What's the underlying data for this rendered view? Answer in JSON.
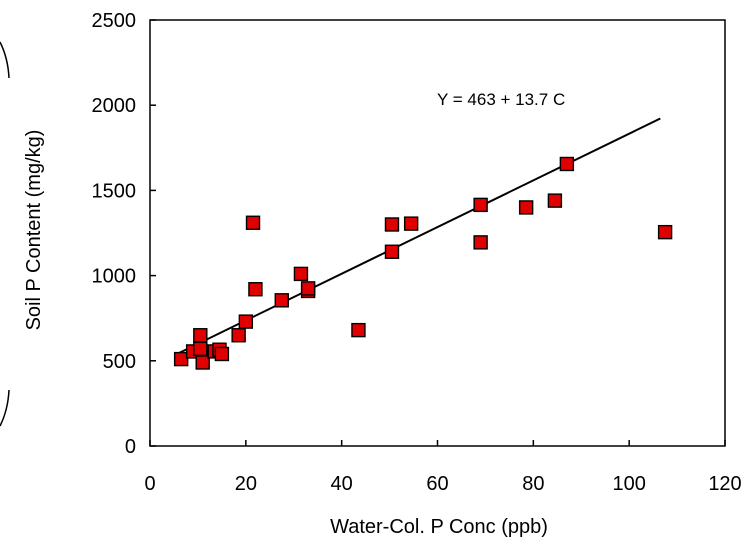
{
  "chart_data": {
    "type": "scatter",
    "xlabel": "Water-Col. P Conc (ppb)",
    "ylabel": "Soil P Content (mg/kg)",
    "xlim": [
      0,
      120
    ],
    "ylim": [
      0,
      2500
    ],
    "xticks": [
      0,
      20,
      40,
      60,
      80,
      100,
      120
    ],
    "yticks": [
      0,
      500,
      1000,
      1500,
      2000,
      2500
    ],
    "grid": false,
    "annotation": "Y  =   463  +  13.7 C",
    "marker_color": "#e00000",
    "points": [
      {
        "x": 6.5,
        "y": 510
      },
      {
        "x": 9,
        "y": 555
      },
      {
        "x": 10.5,
        "y": 650
      },
      {
        "x": 10.5,
        "y": 570
      },
      {
        "x": 11,
        "y": 490
      },
      {
        "x": 13.5,
        "y": 555
      },
      {
        "x": 14.5,
        "y": 565
      },
      {
        "x": 15,
        "y": 540
      },
      {
        "x": 18.5,
        "y": 650
      },
      {
        "x": 20,
        "y": 730
      },
      {
        "x": 21.5,
        "y": 1310
      },
      {
        "x": 22,
        "y": 920
      },
      {
        "x": 27.5,
        "y": 855
      },
      {
        "x": 31.5,
        "y": 1010
      },
      {
        "x": 33,
        "y": 910
      },
      {
        "x": 33,
        "y": 925
      },
      {
        "x": 43.5,
        "y": 680
      },
      {
        "x": 50.5,
        "y": 1140
      },
      {
        "x": 50.5,
        "y": 1300
      },
      {
        "x": 54.5,
        "y": 1305
      },
      {
        "x": 69,
        "y": 1195
      },
      {
        "x": 69,
        "y": 1415
      },
      {
        "x": 78.5,
        "y": 1400
      },
      {
        "x": 84.5,
        "y": 1440
      },
      {
        "x": 87,
        "y": 1655
      },
      {
        "x": 107.5,
        "y": 1255
      }
    ],
    "trendline": {
      "intercept": 463,
      "slope": 13.7,
      "x_start": 6,
      "x_end": 106.5
    }
  }
}
